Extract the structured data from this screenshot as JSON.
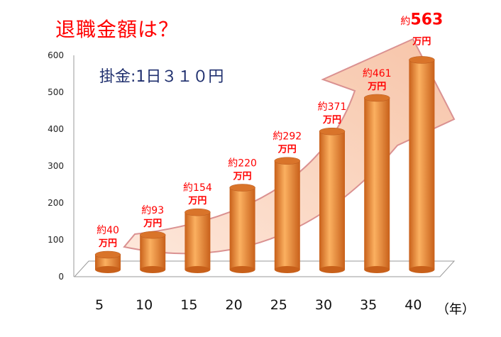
{
  "chart_data": {
    "type": "bar",
    "title": "退職金額は？",
    "subtitle": "掛金:1日３１０円",
    "categories": [
      "5",
      "10",
      "15",
      "20",
      "25",
      "30",
      "35",
      "40"
    ],
    "values": [
      40,
      93,
      154,
      220,
      292,
      371,
      461,
      563
    ],
    "data_labels": [
      {
        "prefix": "約",
        "value": "40",
        "unit": "万円"
      },
      {
        "prefix": "約",
        "value": "93",
        "unit": "万円"
      },
      {
        "prefix": "約",
        "value": "154",
        "unit": "万円"
      },
      {
        "prefix": "約",
        "value": "220",
        "unit": "万円"
      },
      {
        "prefix": "約",
        "value": "292",
        "unit": "万円"
      },
      {
        "prefix": "約",
        "value": "371",
        "unit": "万円"
      },
      {
        "prefix": "約",
        "value": "461",
        "unit": "万円"
      },
      {
        "prefix": "約",
        "value": "563",
        "unit": "万円"
      }
    ],
    "xlabel": "（年）",
    "ylabel": "",
    "yticks": [
      "0",
      "100",
      "200",
      "300",
      "400",
      "500",
      "600"
    ],
    "ylim": [
      0,
      600
    ],
    "colors": {
      "bar": "#f5963a",
      "label": "#ff0000",
      "arrow": "#fad4c0",
      "arrow_stroke": "#d98c8c"
    }
  }
}
